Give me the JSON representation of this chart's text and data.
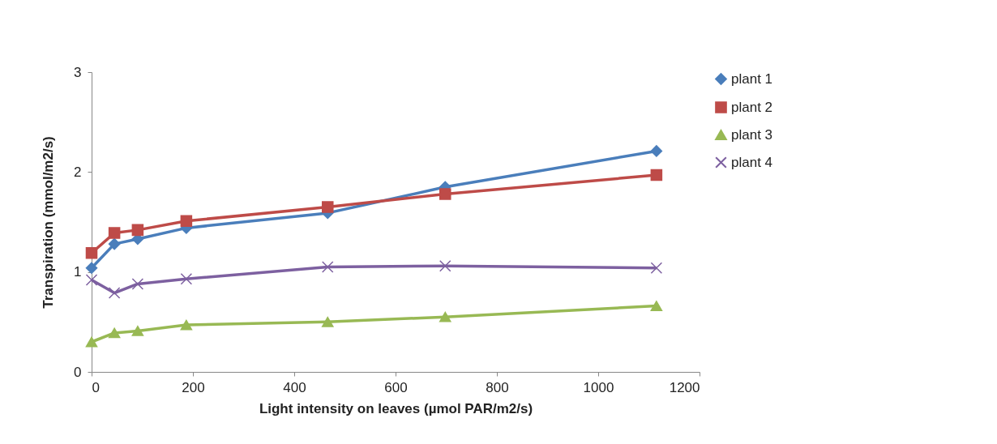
{
  "chart_data": {
    "type": "line",
    "xlabel": "Light intensity on leaves (µmol PAR/m2/s)",
    "ylabel": "Transpiration (mmol/m2/s)",
    "x": [
      0,
      45,
      91,
      187,
      466,
      698,
      1115
    ],
    "xlim": [
      0,
      1200
    ],
    "xticks": [
      0,
      200,
      400,
      600,
      800,
      1000,
      1200
    ],
    "ylim": [
      0,
      3
    ],
    "yticks": [
      0,
      1,
      2,
      3
    ],
    "grid": false,
    "legend": "right",
    "line_style": "solid",
    "series": [
      {
        "name": "plant 1",
        "color": "#4a7ebb",
        "marker": "diamond",
        "values": [
          1.04,
          1.28,
          1.33,
          1.44,
          1.59,
          1.85,
          2.21
        ]
      },
      {
        "name": "plant 2",
        "color": "#be4b48",
        "marker": "square",
        "values": [
          1.19,
          1.39,
          1.42,
          1.51,
          1.65,
          1.78,
          1.97
        ]
      },
      {
        "name": "plant 3",
        "color": "#98b954",
        "marker": "triangle",
        "values": [
          0.3,
          0.39,
          0.41,
          0.47,
          0.5,
          0.55,
          0.66
        ]
      },
      {
        "name": "plant 4",
        "color": "#7d60a0",
        "marker": "cross",
        "values": [
          0.92,
          0.79,
          0.88,
          0.93,
          1.05,
          1.06,
          1.04
        ]
      }
    ]
  }
}
